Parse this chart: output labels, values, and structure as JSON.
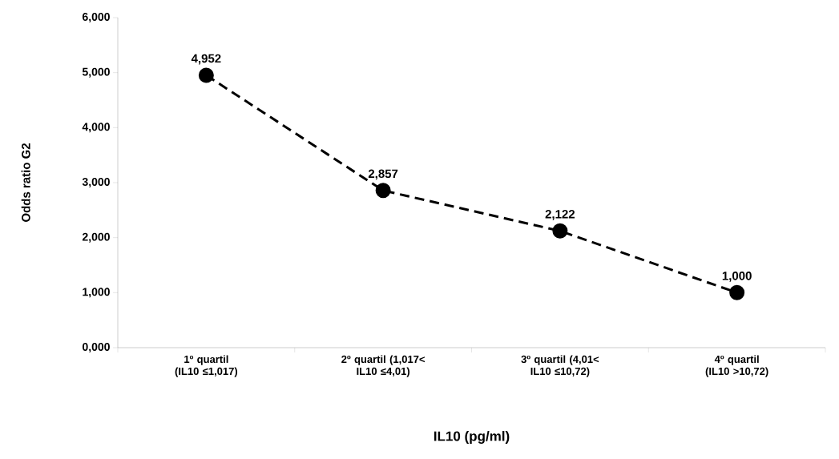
{
  "chart_data": {
    "type": "line",
    "xlabel": "IL10 (pg/ml)",
    "ylabel": "Odds ratio G2",
    "categories": [
      "1º quartil (IL10 ≤1,017)",
      "2º quartil (1,017< IL10 ≤4,01)",
      "3º quartil (4,01< IL10 ≤10,72)",
      "4º quartil (IL10 >10,72)"
    ],
    "series": [
      {
        "color": "#000000",
        "values": [
          4.952,
          2.857,
          2.122,
          1.0
        ],
        "value_labels": [
          "4,952",
          "2,857",
          "2,122",
          "1,000"
        ]
      }
    ],
    "marker": "circle",
    "line_style": "dashed",
    "grid": false,
    "ylim": [
      0,
      6
    ],
    "yticks": [
      {
        "value": 0,
        "label": "0,000"
      },
      {
        "value": 1,
        "label": "1,000"
      },
      {
        "value": 2,
        "label": "2,000"
      },
      {
        "value": 3,
        "label": "3,000"
      },
      {
        "value": 4,
        "label": "4,000"
      },
      {
        "value": 5,
        "label": "5,000"
      },
      {
        "value": 6,
        "label": "6,000"
      }
    ]
  }
}
